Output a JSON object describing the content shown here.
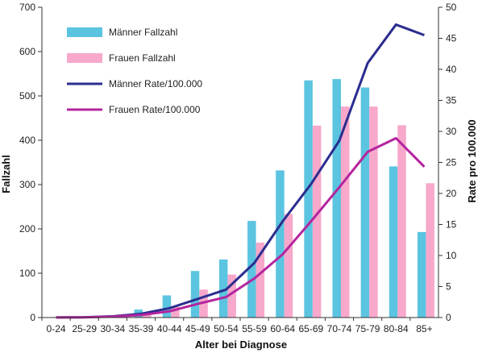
{
  "chart_data": {
    "type": "bar",
    "categories": [
      "0-24",
      "25-29",
      "30-34",
      "35-39",
      "40-44",
      "45-49",
      "50-54",
      "55-59",
      "60-64",
      "65-69",
      "70-74",
      "75-79",
      "80-84",
      "85+"
    ],
    "series": [
      {
        "name": "Männer Fallzahl",
        "type": "bar",
        "axis": "left",
        "color": "#5bc4e0",
        "values": [
          1,
          2,
          5,
          18,
          50,
          105,
          131,
          218,
          332,
          535,
          538,
          519,
          341,
          193
        ]
      },
      {
        "name": "Frauen Fallzahl",
        "type": "bar",
        "axis": "left",
        "color": "#f7a8cb",
        "values": [
          0,
          1,
          3,
          9,
          24,
          63,
          97,
          169,
          234,
          433,
          476,
          476,
          434,
          303
        ]
      },
      {
        "name": "Männer Rate/100.000",
        "type": "line",
        "axis": "right",
        "color": "#2b2d8f",
        "values": [
          0.02,
          0.05,
          0.2,
          0.6,
          1.5,
          3.0,
          4.5,
          8.8,
          15.5,
          21.5,
          28.5,
          41,
          47.2,
          45.5
        ]
      },
      {
        "name": "Frauen Rate/100.000",
        "type": "line",
        "axis": "right",
        "color": "#b5249e",
        "values": [
          0.01,
          0.03,
          0.15,
          0.4,
          1.0,
          2.2,
          3.3,
          6.3,
          10.2,
          15.5,
          21,
          26.7,
          28.9,
          24.3
        ]
      }
    ],
    "xlabel": "Alter bei Diagnose",
    "ylabel": "Fallzahl",
    "y2label": "Rate pro 100.000",
    "ylim": [
      0,
      700
    ],
    "y2lim": [
      0,
      50
    ],
    "yticks": [
      0,
      100,
      200,
      300,
      400,
      500,
      600,
      700
    ],
    "y2ticks": [
      0,
      5,
      10,
      15,
      20,
      25,
      30,
      35,
      40,
      45,
      50
    ],
    "grid": false,
    "legend_position": "top-left"
  }
}
